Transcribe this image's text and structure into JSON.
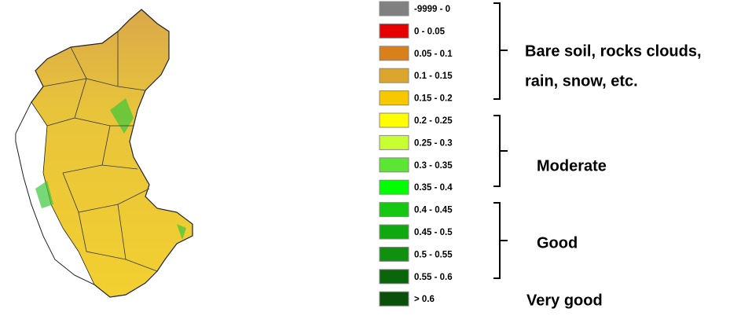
{
  "legend": {
    "items": [
      {
        "label": "-9999 - 0",
        "color": "#808080"
      },
      {
        "label": "0 - 0.05",
        "color": "#e60000"
      },
      {
        "label": "0.05 - 0.1",
        "color": "#d9801a"
      },
      {
        "label": "0.1 - 0.15",
        "color": "#dca52d"
      },
      {
        "label": "0.15 - 0.2",
        "color": "#f5c800"
      },
      {
        "label": "0.2 - 0.25",
        "color": "#ffff00"
      },
      {
        "label": "0.25 - 0.3",
        "color": "#c8ff32"
      },
      {
        "label": "0.3 - 0.35",
        "color": "#5ae632"
      },
      {
        "label": "0.35 - 0.4",
        "color": "#00ff00"
      },
      {
        "label": "0.4 - 0.45",
        "color": "#14c814"
      },
      {
        "label": "0.45 - 0.5",
        "color": "#0fa80f"
      },
      {
        "label": "0.5 - 0.55",
        "color": "#0f910f"
      },
      {
        "label": "0.55 - 0.6",
        "color": "#0a660a"
      },
      {
        "label": "> 0.6",
        "color": "#0a500a"
      }
    ],
    "groups": [
      {
        "lines": [
          "Bare soil, rocks clouds,",
          "rain, snow, etc."
        ]
      },
      {
        "lines": [
          "Moderate"
        ]
      },
      {
        "lines": [
          "Good"
        ]
      },
      {
        "lines": [
          "Very good"
        ]
      }
    ]
  }
}
